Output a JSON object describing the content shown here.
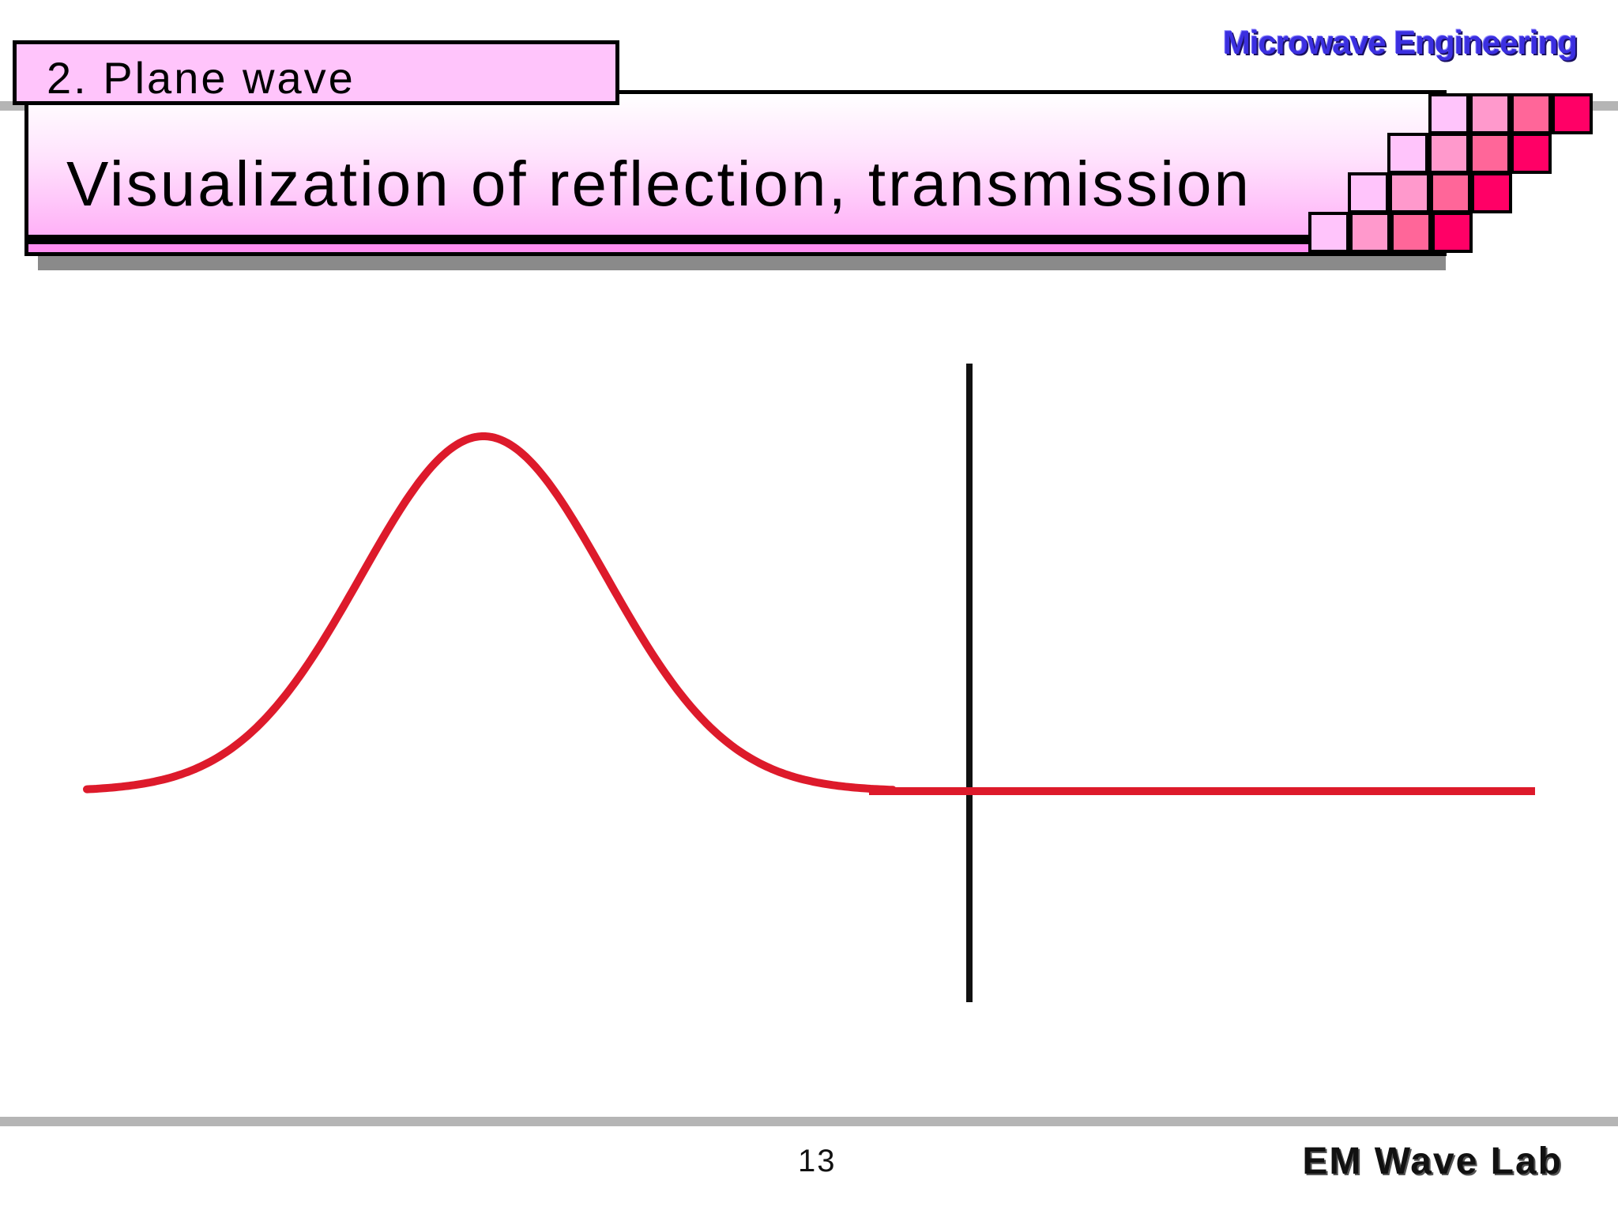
{
  "header": {
    "subject": "Microwave Engineering",
    "section": "2. Plane wave",
    "title": "Visualization of reflection, transmission"
  },
  "decoration": {
    "checker_colors": [
      "#ffc4fb",
      "#ff99cc",
      "#ff6699",
      "#ff0066"
    ]
  },
  "figure": {
    "pulse_color": "#dd1a2b",
    "interface_color": "#111111",
    "description_free": true
  },
  "footer": {
    "page_number": "13",
    "lab": "EM Wave Lab"
  }
}
